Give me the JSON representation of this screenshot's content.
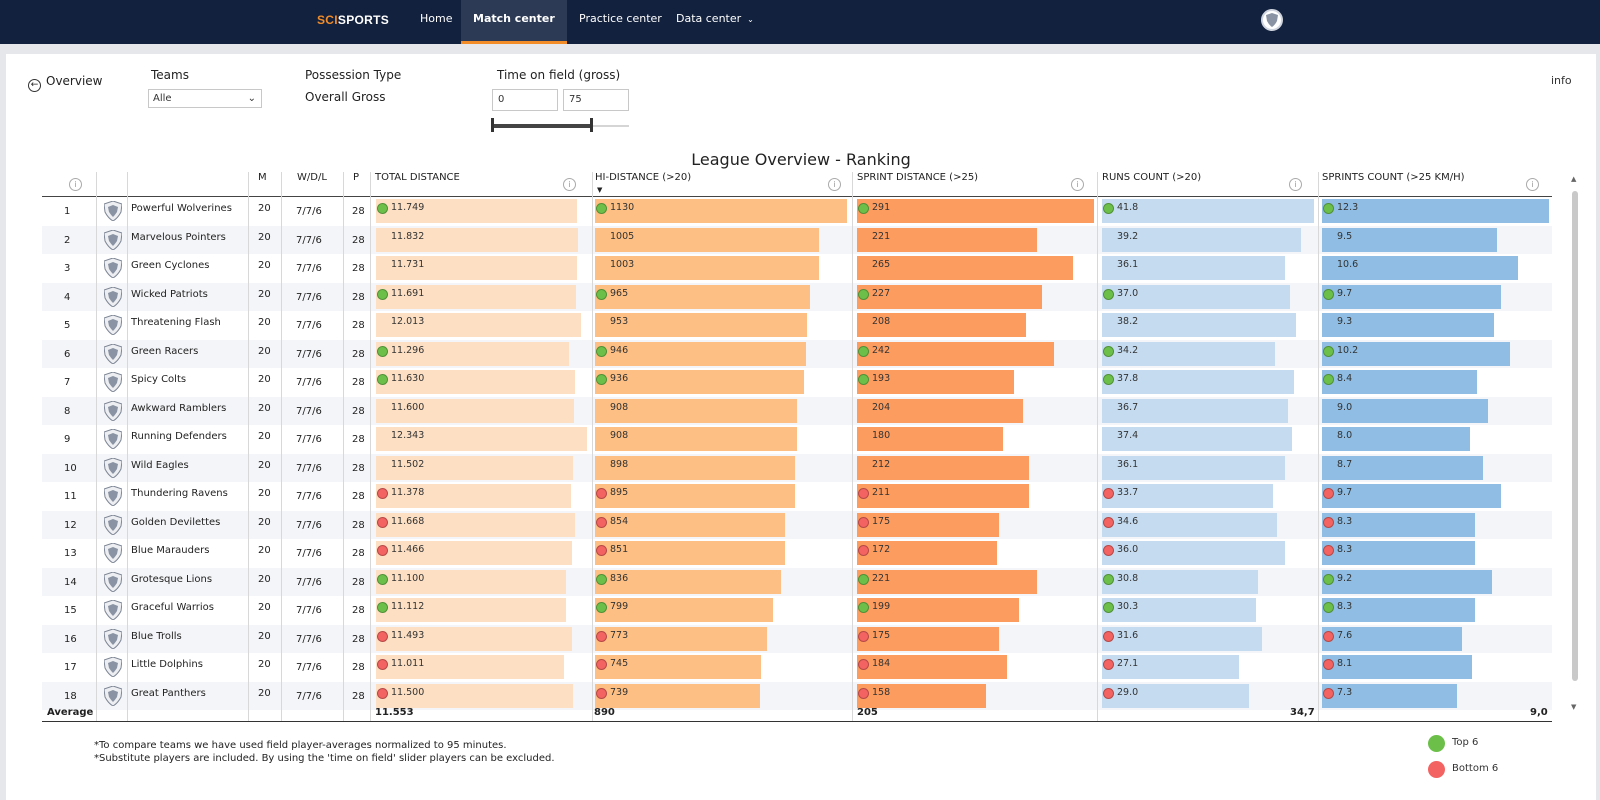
{
  "nav": {
    "logo_a": "SCI",
    "logo_b": "SPORTS",
    "items": [
      {
        "label": "Home"
      },
      {
        "label": "Match center"
      },
      {
        "label": "Practice center"
      },
      {
        "label": "Data center"
      }
    ],
    "active_item": "Match center",
    "avatar_icon": "club-shield-icon"
  },
  "filters": {
    "back_label": "Overview",
    "info_label": "info",
    "teams_label": "Teams",
    "teams_value": "Alle",
    "possession_label": "Possession Type",
    "possession_value": "Overall Gross",
    "time_label": "Time on field (gross)",
    "time_min": "0",
    "time_max": "75"
  },
  "title": "League Overview - Ranking",
  "columns": {
    "m": "M",
    "wdl": "W/D/L",
    "p": "P",
    "total": "TOTAL DISTANCE",
    "hi": "HI-DISTANCE (>20)",
    "sprint": "SPRINT DISTANCE (>25)",
    "runs": "RUNS COUNT (>20)",
    "sprints": "SPRINTS COUNT (>25 KM/H)"
  },
  "colors": {
    "total_bar": "#fddfc3",
    "hi_bar": "#fdbf83",
    "sprint_bar": "#fd9c5f",
    "runs_bar": "#c5dcf0",
    "sprints_bar": "#8fbde3",
    "top": "#6cc04a",
    "bottom": "#f26361"
  },
  "rows": [
    {
      "rank": "1",
      "team": "Powerful Wolverines",
      "m": "20",
      "wdl": "7/7/6",
      "p": "28",
      "total": "11.749",
      "total_v": 11.749,
      "total_m": "top",
      "hi": "1130",
      "hi_v": 1130,
      "hi_m": "top",
      "sprint": "291",
      "sprint_v": 291,
      "sprint_m": "top",
      "runs": "41.8",
      "runs_v": 41.8,
      "runs_m": "top",
      "sprints": "12.3",
      "sprints_v": 12.3,
      "sprints_m": "top"
    },
    {
      "rank": "2",
      "team": "Marvelous Pointers",
      "m": "20",
      "wdl": "7/7/6",
      "p": "28",
      "total": "11.832",
      "total_v": 11.832,
      "total_m": "",
      "hi": "1005",
      "hi_v": 1005,
      "hi_m": "",
      "sprint": "221",
      "sprint_v": 221,
      "sprint_m": "",
      "runs": "39.2",
      "runs_v": 39.2,
      "runs_m": "",
      "sprints": "9.5",
      "sprints_v": 9.5,
      "sprints_m": ""
    },
    {
      "rank": "3",
      "team": "Green Cyclones",
      "m": "20",
      "wdl": "7/7/6",
      "p": "28",
      "total": "11.731",
      "total_v": 11.731,
      "total_m": "",
      "hi": "1003",
      "hi_v": 1003,
      "hi_m": "",
      "sprint": "265",
      "sprint_v": 265,
      "sprint_m": "",
      "runs": "36.1",
      "runs_v": 36.1,
      "runs_m": "",
      "sprints": "10.6",
      "sprints_v": 10.6,
      "sprints_m": ""
    },
    {
      "rank": "4",
      "team": "Wicked Patriots",
      "m": "20",
      "wdl": "7/7/6",
      "p": "28",
      "total": "11.691",
      "total_v": 11.691,
      "total_m": "top",
      "hi": "965",
      "hi_v": 965,
      "hi_m": "top",
      "sprint": "227",
      "sprint_v": 227,
      "sprint_m": "top",
      "runs": "37.0",
      "runs_v": 37.0,
      "runs_m": "top",
      "sprints": "9.7",
      "sprints_v": 9.7,
      "sprints_m": "top"
    },
    {
      "rank": "5",
      "team": "Threatening Flash",
      "m": "20",
      "wdl": "7/7/6",
      "p": "28",
      "total": "12.013",
      "total_v": 12.013,
      "total_m": "",
      "hi": "953",
      "hi_v": 953,
      "hi_m": "",
      "sprint": "208",
      "sprint_v": 208,
      "sprint_m": "",
      "runs": "38.2",
      "runs_v": 38.2,
      "runs_m": "",
      "sprints": "9.3",
      "sprints_v": 9.3,
      "sprints_m": ""
    },
    {
      "rank": "6",
      "team": "Green Racers",
      "m": "20",
      "wdl": "7/7/6",
      "p": "28",
      "total": "11.296",
      "total_v": 11.296,
      "total_m": "top",
      "hi": "946",
      "hi_v": 946,
      "hi_m": "top",
      "sprint": "242",
      "sprint_v": 242,
      "sprint_m": "top",
      "runs": "34.2",
      "runs_v": 34.2,
      "runs_m": "top",
      "sprints": "10.2",
      "sprints_v": 10.2,
      "sprints_m": "top"
    },
    {
      "rank": "7",
      "team": "Spicy Colts",
      "m": "20",
      "wdl": "7/7/6",
      "p": "28",
      "total": "11.630",
      "total_v": 11.63,
      "total_m": "top",
      "hi": "936",
      "hi_v": 936,
      "hi_m": "top",
      "sprint": "193",
      "sprint_v": 193,
      "sprint_m": "top",
      "runs": "37.8",
      "runs_v": 37.8,
      "runs_m": "top",
      "sprints": "8.4",
      "sprints_v": 8.4,
      "sprints_m": "top"
    },
    {
      "rank": "8",
      "team": "Awkward Ramblers",
      "m": "20",
      "wdl": "7/7/6",
      "p": "28",
      "total": "11.600",
      "total_v": 11.6,
      "total_m": "",
      "hi": "908",
      "hi_v": 908,
      "hi_m": "",
      "sprint": "204",
      "sprint_v": 204,
      "sprint_m": "",
      "runs": "36.7",
      "runs_v": 36.7,
      "runs_m": "",
      "sprints": "9.0",
      "sprints_v": 9.0,
      "sprints_m": ""
    },
    {
      "rank": "9",
      "team": "Running Defenders",
      "m": "20",
      "wdl": "7/7/6",
      "p": "28",
      "total": "12.343",
      "total_v": 12.343,
      "total_m": "",
      "hi": "908",
      "hi_v": 908,
      "hi_m": "",
      "sprint": "180",
      "sprint_v": 180,
      "sprint_m": "",
      "runs": "37.4",
      "runs_v": 37.4,
      "runs_m": "",
      "sprints": "8.0",
      "sprints_v": 8.0,
      "sprints_m": ""
    },
    {
      "rank": "10",
      "team": "Wild Eagles",
      "m": "20",
      "wdl": "7/7/6",
      "p": "28",
      "total": "11.502",
      "total_v": 11.502,
      "total_m": "",
      "hi": "898",
      "hi_v": 898,
      "hi_m": "",
      "sprint": "212",
      "sprint_v": 212,
      "sprint_m": "",
      "runs": "36.1",
      "runs_v": 36.1,
      "runs_m": "",
      "sprints": "8.7",
      "sprints_v": 8.7,
      "sprints_m": ""
    },
    {
      "rank": "11",
      "team": "Thundering Ravens",
      "m": "20",
      "wdl": "7/7/6",
      "p": "28",
      "total": "11.378",
      "total_v": 11.378,
      "total_m": "bottom",
      "hi": "895",
      "hi_v": 895,
      "hi_m": "bottom",
      "sprint": "211",
      "sprint_v": 211,
      "sprint_m": "bottom",
      "runs": "33.7",
      "runs_v": 33.7,
      "runs_m": "bottom",
      "sprints": "9.7",
      "sprints_v": 9.7,
      "sprints_m": "bottom"
    },
    {
      "rank": "12",
      "team": "Golden Devilettes",
      "m": "20",
      "wdl": "7/7/6",
      "p": "28",
      "total": "11.668",
      "total_v": 11.668,
      "total_m": "bottom",
      "hi": "854",
      "hi_v": 854,
      "hi_m": "bottom",
      "sprint": "175",
      "sprint_v": 175,
      "sprint_m": "bottom",
      "runs": "34.6",
      "runs_v": 34.6,
      "runs_m": "bottom",
      "sprints": "8.3",
      "sprints_v": 8.3,
      "sprints_m": "bottom"
    },
    {
      "rank": "13",
      "team": "Blue Marauders",
      "m": "20",
      "wdl": "7/7/6",
      "p": "28",
      "total": "11.466",
      "total_v": 11.466,
      "total_m": "bottom",
      "hi": "851",
      "hi_v": 851,
      "hi_m": "bottom",
      "sprint": "172",
      "sprint_v": 172,
      "sprint_m": "bottom",
      "runs": "36.0",
      "runs_v": 36.0,
      "runs_m": "bottom",
      "sprints": "8.3",
      "sprints_v": 8.3,
      "sprints_m": "bottom"
    },
    {
      "rank": "14",
      "team": "Grotesque Lions",
      "m": "20",
      "wdl": "7/7/6",
      "p": "28",
      "total": "11.100",
      "total_v": 11.1,
      "total_m": "top",
      "hi": "836",
      "hi_v": 836,
      "hi_m": "top",
      "sprint": "221",
      "sprint_v": 221,
      "sprint_m": "top",
      "runs": "30.8",
      "runs_v": 30.8,
      "runs_m": "top",
      "sprints": "9.2",
      "sprints_v": 9.2,
      "sprints_m": "top"
    },
    {
      "rank": "15",
      "team": "Graceful Warrios",
      "m": "20",
      "wdl": "7/7/6",
      "p": "28",
      "total": "11.112",
      "total_v": 11.112,
      "total_m": "top",
      "hi": "799",
      "hi_v": 799,
      "hi_m": "top",
      "sprint": "199",
      "sprint_v": 199,
      "sprint_m": "top",
      "runs": "30.3",
      "runs_v": 30.3,
      "runs_m": "top",
      "sprints": "8.3",
      "sprints_v": 8.3,
      "sprints_m": "top"
    },
    {
      "rank": "16",
      "team": "Blue Trolls",
      "m": "20",
      "wdl": "7/7/6",
      "p": "28",
      "total": "11.493",
      "total_v": 11.493,
      "total_m": "bottom",
      "hi": "773",
      "hi_v": 773,
      "hi_m": "bottom",
      "sprint": "175",
      "sprint_v": 175,
      "sprint_m": "bottom",
      "runs": "31.6",
      "runs_v": 31.6,
      "runs_m": "bottom",
      "sprints": "7.6",
      "sprints_v": 7.6,
      "sprints_m": "bottom"
    },
    {
      "rank": "17",
      "team": "Little Dolphins",
      "m": "20",
      "wdl": "7/7/6",
      "p": "28",
      "total": "11.011",
      "total_v": 11.011,
      "total_m": "bottom",
      "hi": "745",
      "hi_v": 745,
      "hi_m": "bottom",
      "sprint": "184",
      "sprint_v": 184,
      "sprint_m": "bottom",
      "runs": "27.1",
      "runs_v": 27.1,
      "runs_m": "bottom",
      "sprints": "8.1",
      "sprints_v": 8.1,
      "sprints_m": "bottom"
    },
    {
      "rank": "18",
      "team": "Great Panthers",
      "m": "20",
      "wdl": "7/7/6",
      "p": "28",
      "total": "11.500",
      "total_v": 11.5,
      "total_m": "bottom",
      "hi": "739",
      "hi_v": 739,
      "hi_m": "bottom",
      "sprint": "158",
      "sprint_v": 158,
      "sprint_m": "bottom",
      "runs": "29.0",
      "runs_v": 29.0,
      "runs_m": "bottom",
      "sprints": "7.3",
      "sprints_v": 7.3,
      "sprints_m": "bottom"
    }
  ],
  "average": {
    "label": "Average",
    "total": "11.553",
    "hi": "890",
    "sprint": "205",
    "runs": "34,7",
    "sprints": "9,0"
  },
  "notes": [
    "*To compare teams we have used field player-averages normalized to 95 minutes.",
    "*Substitute players are included. By using the 'time on field' slider players can be excluded."
  ],
  "legend": {
    "top": "Top 6",
    "bottom": "Bottom 6"
  }
}
